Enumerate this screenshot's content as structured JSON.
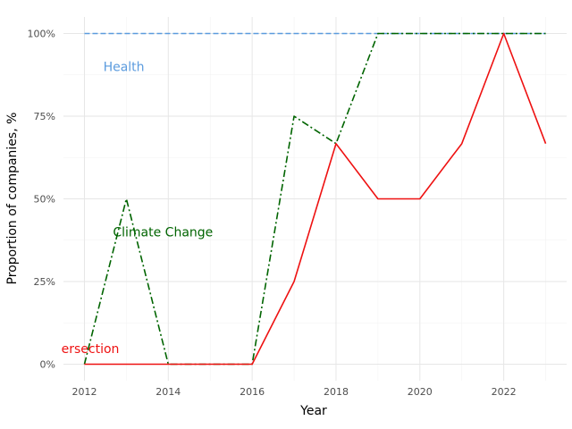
{
  "chart_data": {
    "type": "line",
    "title": "",
    "xlabel": "Year",
    "ylabel": "Proportion of companies, %",
    "xlim": [
      2011.5,
      2023.5
    ],
    "ylim": [
      -0.05,
      1.05
    ],
    "x_ticks": [
      2012,
      2014,
      2016,
      2018,
      2020,
      2022
    ],
    "x_tick_labels": [
      "2012",
      "2014",
      "2016",
      "2018",
      "2020",
      "2022"
    ],
    "y_ticks": [
      0,
      0.25,
      0.5,
      0.75,
      1.0
    ],
    "y_tick_labels": [
      "0%",
      "25%",
      "50%",
      "75%",
      "100%"
    ],
    "grid": true,
    "legend": "none",
    "series": [
      {
        "name": "Health",
        "color": "#5b9bde",
        "dash": "dashed",
        "x": [
          2012,
          2013,
          2014,
          2015,
          2016,
          2017,
          2018,
          2019,
          2020,
          2021,
          2022,
          2023
        ],
        "y": [
          1,
          1,
          1,
          1,
          1,
          1,
          1,
          1,
          1,
          1,
          1,
          1
        ],
        "label": "Health",
        "label_pos": {
          "x": 2012.45,
          "y": 0.9
        }
      },
      {
        "name": "Climate Change",
        "color": "#006400",
        "dash": "dashdot",
        "x": [
          2012,
          2013,
          2014,
          2015,
          2016,
          2017,
          2018,
          2019,
          2020,
          2021,
          2022,
          2023
        ],
        "y": [
          0,
          0.5,
          0,
          0,
          0,
          0.75,
          0.667,
          1,
          1,
          1,
          1,
          1
        ],
        "label": "Climate Change",
        "label_pos": {
          "x": 2012.68,
          "y": 0.4
        }
      },
      {
        "name": "Intersection",
        "color": "#ee1111",
        "dash": "solid",
        "x": [
          2012,
          2013,
          2014,
          2015,
          2016,
          2017,
          2018,
          2019,
          2020,
          2021,
          2022,
          2023
        ],
        "y": [
          0,
          0,
          0,
          0,
          0,
          0.25,
          0.667,
          0.5,
          0.5,
          0.667,
          1,
          0.667
        ],
        "label": "ersection",
        "label_pos": {
          "x": 2011.45,
          "y": 0.047
        }
      }
    ]
  }
}
